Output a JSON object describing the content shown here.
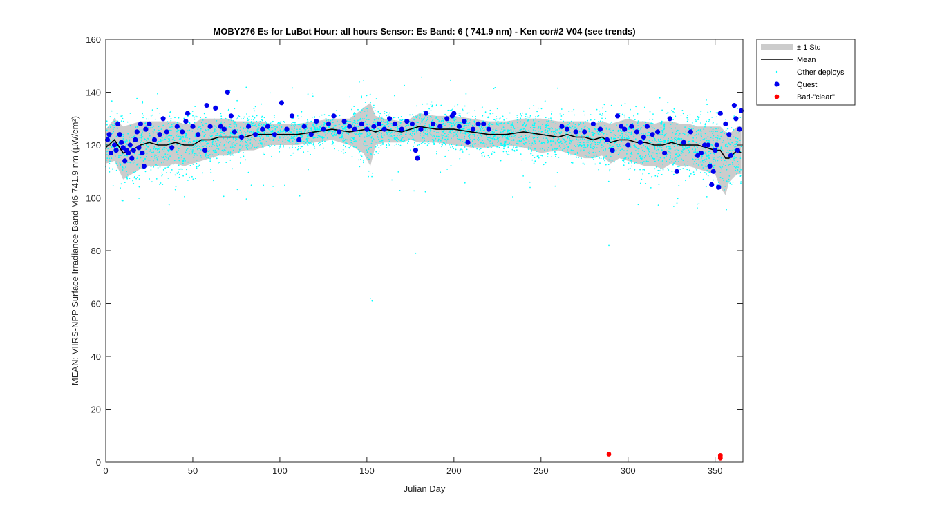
{
  "chart_data": {
    "type": "scatter",
    "title": "MOBY276   Es for LuBot  Hour: all hours  Sensor: Es Band: 6 ( 741.9 nm)  - Ken cor#2 V04 (see trends)",
    "xlabel": "Julian Day",
    "ylabel": "MEAN: VIIRS-NPP Surface Irradiance Band M6 741.9 nm (µW/cm²)",
    "xlim": [
      0,
      366
    ],
    "ylim": [
      0,
      160
    ],
    "xticks": [
      0,
      50,
      100,
      150,
      200,
      250,
      300,
      350
    ],
    "yticks": [
      0,
      20,
      40,
      60,
      80,
      100,
      120,
      140,
      160
    ],
    "grid": false,
    "legend_position": "outside-top-right",
    "legend": [
      {
        "label": "± 1 Std",
        "key": "std"
      },
      {
        "label": "Mean",
        "key": "mean"
      },
      {
        "label": "Other deploys",
        "key": "other"
      },
      {
        "label": "Quest",
        "key": "quest"
      },
      {
        "label": "Bad-\"clear\"",
        "key": "bad"
      }
    ],
    "colors": {
      "std": "#cccccc",
      "mean": "#000000",
      "other": "#00ffff",
      "quest": "#0000ee",
      "bad": "#ff0000"
    },
    "series": [
      {
        "name": "Mean",
        "x": [
          0,
          5,
          10,
          15,
          20,
          25,
          30,
          35,
          40,
          45,
          50,
          55,
          60,
          65,
          70,
          75,
          80,
          85,
          90,
          95,
          100,
          110,
          120,
          130,
          140,
          150,
          155,
          160,
          170,
          175,
          180,
          190,
          200,
          210,
          220,
          230,
          240,
          250,
          260,
          265,
          270,
          275,
          280,
          285,
          290,
          295,
          300,
          305,
          310,
          315,
          320,
          325,
          330,
          335,
          340,
          345,
          350,
          353,
          356,
          358,
          361,
          363,
          365
        ],
        "values": [
          119,
          122,
          117,
          118,
          120,
          121,
          120,
          120,
          121,
          120,
          120,
          122,
          122,
          123,
          123,
          123,
          123,
          124,
          124,
          124,
          124,
          124,
          125,
          126,
          125,
          126,
          125,
          126,
          125,
          126,
          127,
          126,
          126,
          125,
          124,
          124,
          125,
          124,
          123,
          124,
          123,
          123,
          122,
          123,
          121,
          122,
          122,
          121,
          121,
          120,
          120,
          121,
          120,
          120,
          120,
          119,
          118,
          118,
          115,
          115,
          117,
          118,
          117
        ]
      },
      {
        "name": "± 1 Std",
        "x": [
          0,
          5,
          10,
          15,
          20,
          25,
          30,
          35,
          40,
          45,
          50,
          55,
          60,
          65,
          70,
          75,
          80,
          85,
          90,
          95,
          100,
          110,
          120,
          130,
          140,
          148,
          152,
          155,
          160,
          170,
          175,
          180,
          190,
          200,
          210,
          220,
          230,
          240,
          250,
          260,
          265,
          270,
          275,
          280,
          285,
          290,
          295,
          300,
          305,
          310,
          315,
          320,
          325,
          330,
          335,
          340,
          345,
          350,
          353,
          356,
          358,
          361,
          363,
          365
        ],
        "upper": [
          126,
          130,
          127,
          128,
          129,
          129,
          129,
          129,
          129,
          128,
          128,
          130,
          130,
          130,
          130,
          129,
          129,
          129,
          129,
          128,
          128,
          128,
          129,
          130,
          130,
          134,
          136,
          131,
          130,
          129,
          130,
          132,
          131,
          131,
          130,
          129,
          129,
          130,
          130,
          129,
          129,
          129,
          129,
          128,
          129,
          128,
          129,
          130,
          129,
          129,
          128,
          129,
          129,
          128,
          128,
          127,
          127,
          127,
          127,
          125,
          124,
          126,
          127,
          127
        ],
        "lower": [
          113,
          114,
          107,
          109,
          111,
          112,
          112,
          112,
          113,
          112,
          113,
          114,
          115,
          116,
          116,
          117,
          118,
          118,
          119,
          120,
          120,
          120,
          121,
          122,
          120,
          117,
          112,
          120,
          121,
          121,
          122,
          121,
          121,
          120,
          119,
          119,
          120,
          119,
          117,
          118,
          117,
          116,
          115,
          115,
          116,
          113,
          115,
          114,
          113,
          112,
          112,
          111,
          113,
          112,
          112,
          111,
          110,
          109,
          104,
          101,
          106,
          108,
          109,
          109
        ]
      },
      {
        "name": "Quest",
        "x": [
          1,
          2,
          3,
          5,
          6,
          7,
          8,
          9,
          10,
          11,
          12,
          13,
          14,
          15,
          16,
          17,
          18,
          19,
          20,
          21,
          22,
          23,
          25,
          28,
          31,
          33,
          35,
          38,
          41,
          44,
          46,
          47,
          50,
          53,
          57,
          58,
          60,
          63,
          66,
          68,
          70,
          72,
          74,
          78,
          82,
          86,
          90,
          93,
          97,
          101,
          104,
          107,
          111,
          114,
          118,
          121,
          125,
          128,
          131,
          134,
          137,
          140,
          143,
          147,
          150,
          154,
          157,
          160,
          163,
          166,
          170,
          173,
          176,
          178,
          179,
          181,
          184,
          188,
          192,
          196,
          199,
          200,
          203,
          206,
          208,
          211,
          214,
          217,
          220,
          262,
          265,
          270,
          275,
          280,
          284,
          288,
          291,
          294,
          296,
          298,
          300,
          302,
          305,
          307,
          309,
          311,
          314,
          317,
          321,
          324,
          328,
          332,
          336,
          340,
          342,
          344,
          346,
          347,
          348,
          349,
          350,
          351,
          352,
          353,
          356,
          358,
          359,
          361,
          362,
          363,
          364,
          365
        ],
        "values": [
          122,
          124,
          117,
          120,
          118,
          128,
          124,
          121,
          119,
          114,
          118,
          117,
          120,
          115,
          118,
          122,
          125,
          119,
          128,
          117,
          112,
          126,
          128,
          122,
          124,
          130,
          125,
          119,
          127,
          125,
          129,
          132,
          127,
          124,
          118,
          135,
          127,
          134,
          127,
          126,
          140,
          131,
          125,
          123,
          127,
          124,
          126,
          127,
          124,
          136,
          126,
          131,
          122,
          127,
          124,
          129,
          126,
          128,
          131,
          125,
          129,
          127,
          126,
          128,
          126,
          127,
          128,
          126,
          130,
          128,
          126,
          129,
          128,
          118,
          115,
          126,
          132,
          128,
          127,
          130,
          131,
          132,
          127,
          129,
          121,
          126,
          128,
          128,
          126,
          127,
          126,
          125,
          125,
          128,
          126,
          122,
          118,
          131,
          127,
          126,
          120,
          127,
          125,
          121,
          123,
          127,
          124,
          125,
          117,
          130,
          110,
          121,
          125,
          116,
          117,
          120,
          120,
          112,
          105,
          110,
          118,
          120,
          104,
          132,
          128,
          124,
          116,
          135,
          130,
          118,
          126,
          133
        ]
      },
      {
        "name": "Bad-\"clear\"",
        "x": [
          289,
          353,
          353,
          353
        ],
        "values": [
          3,
          2,
          2.5,
          1.5
        ]
      }
    ]
  }
}
